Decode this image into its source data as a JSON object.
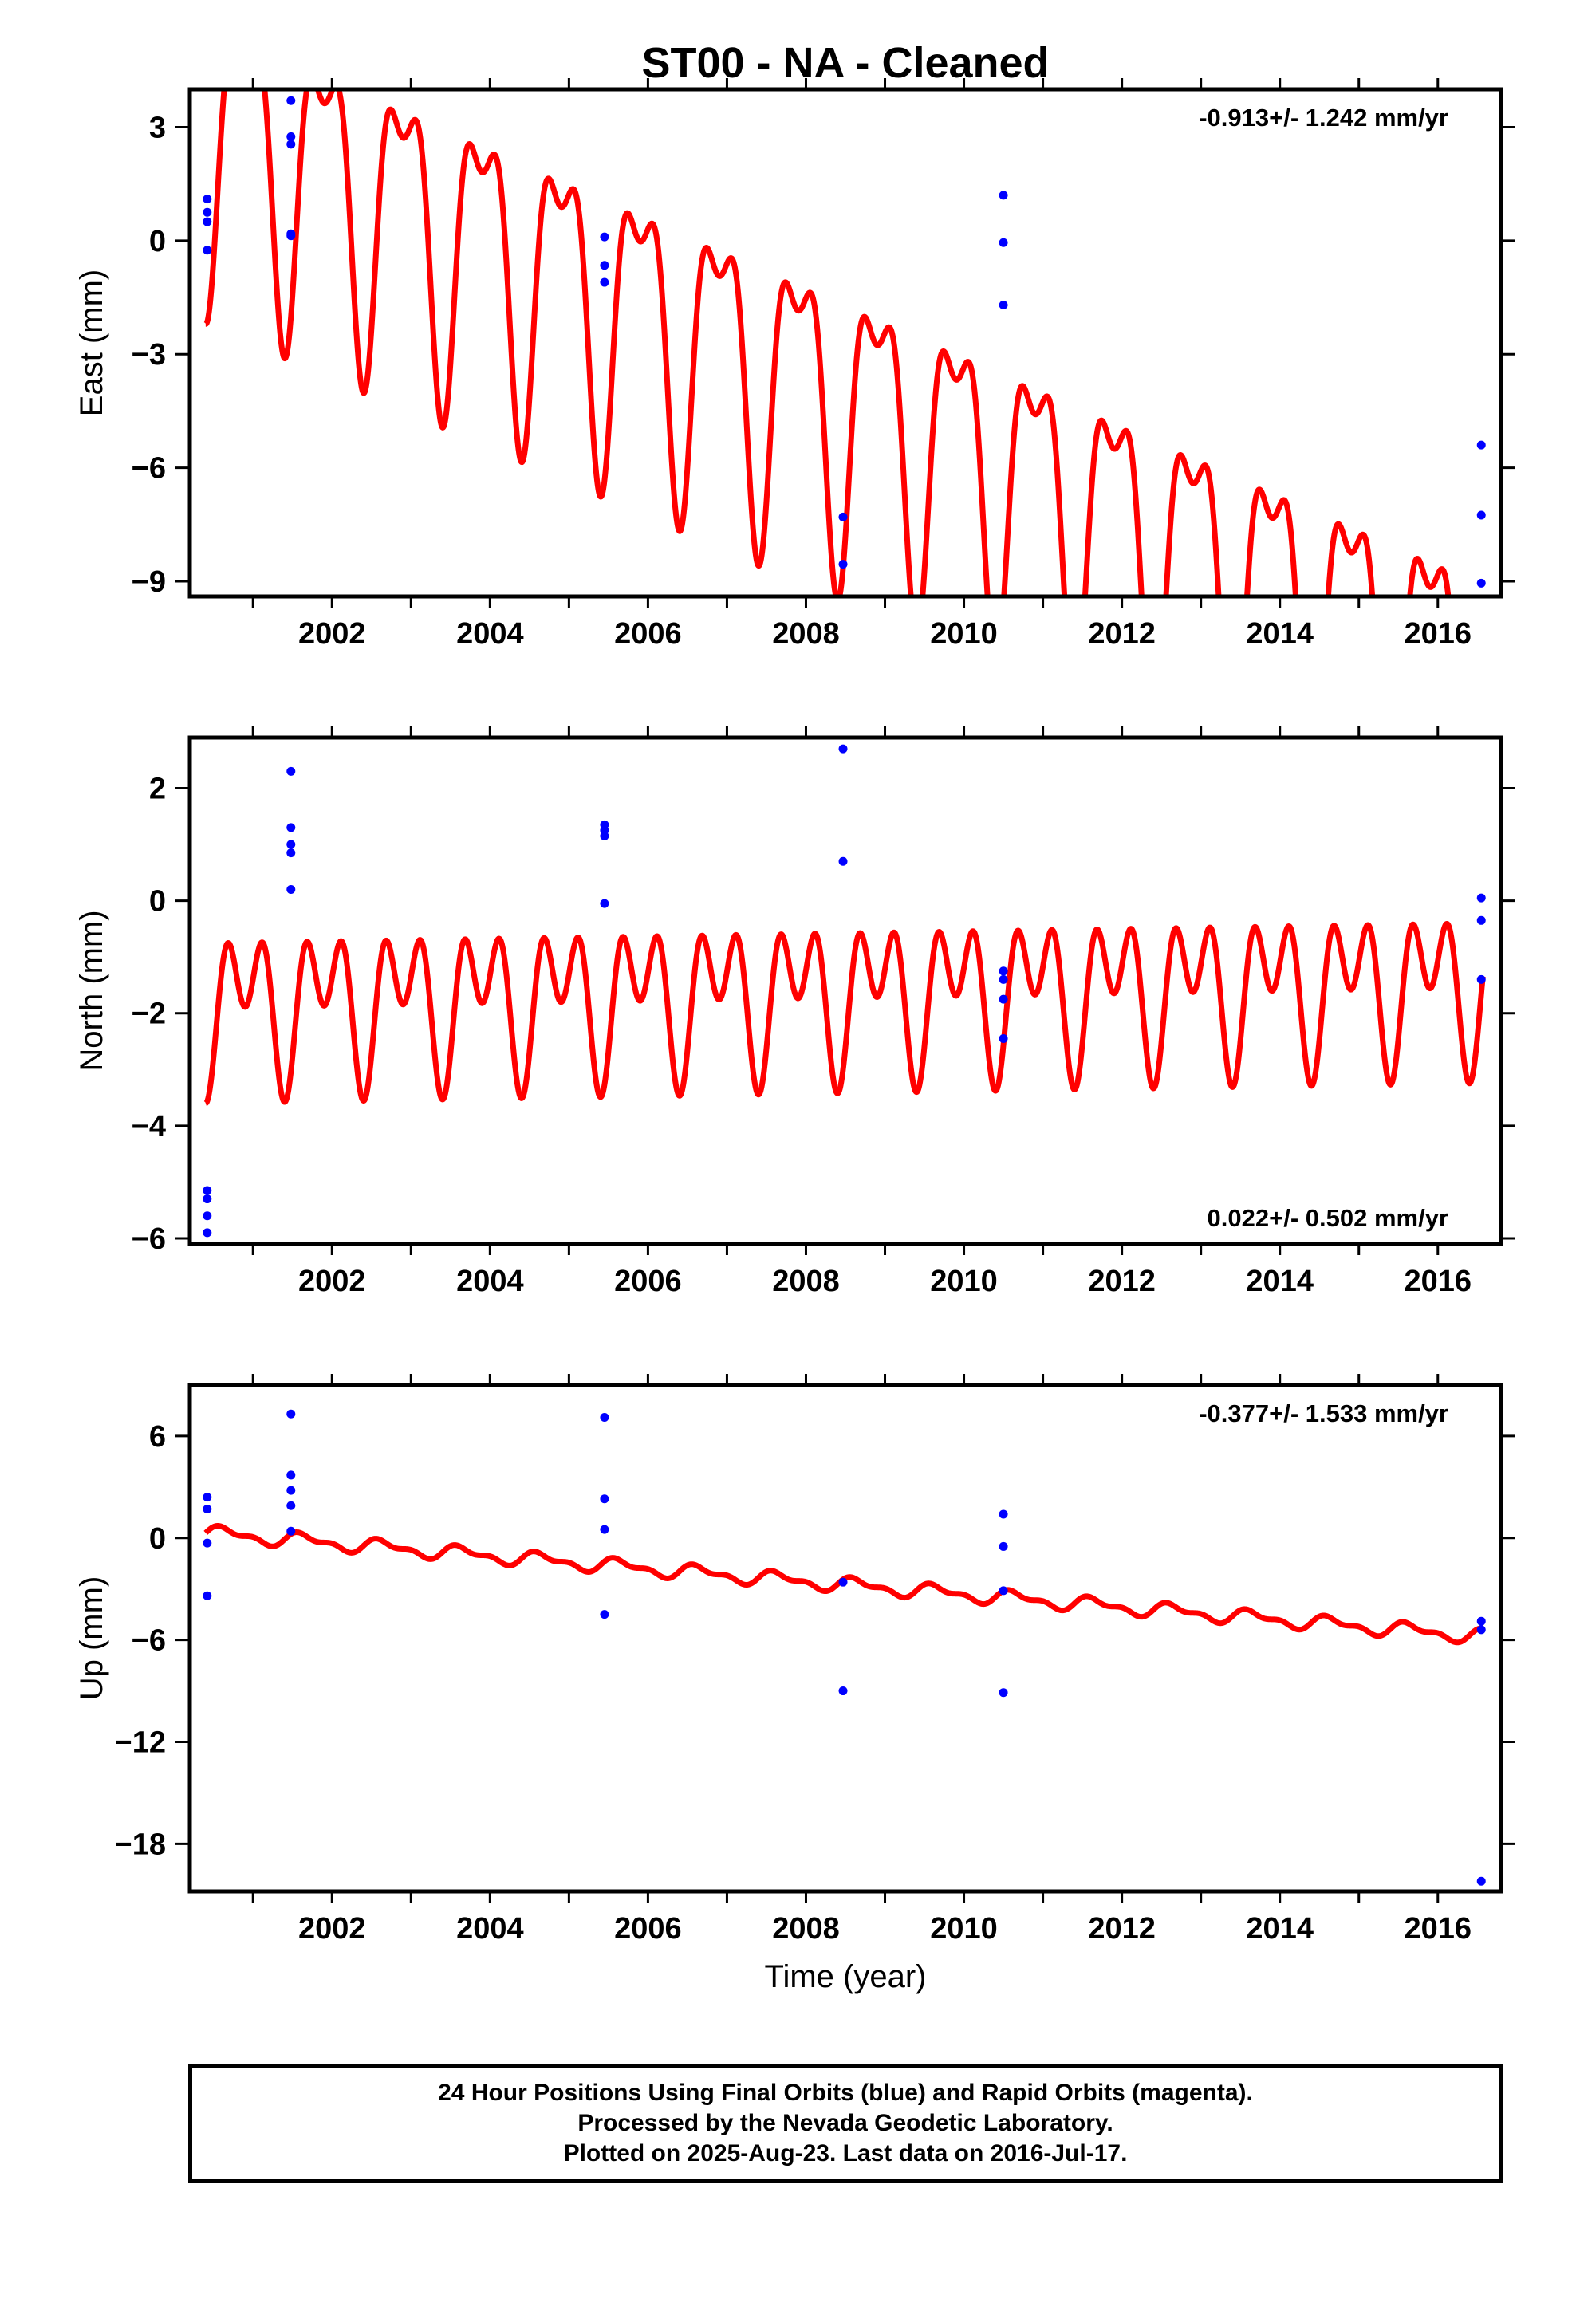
{
  "title": "ST00  - NA - Cleaned",
  "xlabel": "Time (year)",
  "colors": {
    "model": "#ff0000",
    "final_orbits": "#0000ff",
    "axes": "#000000"
  },
  "footer": {
    "line1": "24 Hour Positions Using Final Orbits (blue) and Rapid Orbits (magenta).",
    "line2": "Processed by the Nevada Geodetic Laboratory.",
    "line3": "Plotted on 2025-Aug-23. Last data on 2016-Jul-17."
  },
  "chart_data": [
    {
      "type": "scatter",
      "component": "east",
      "ylabel": "East (mm)",
      "rate_label": "-0.913+/- 1.242 mm/yr",
      "rate_position": "top-right",
      "xlim": [
        2000.2,
        2016.8
      ],
      "ylim": [
        -9.4,
        4.0
      ],
      "x_ticks": [
        2002,
        2004,
        2006,
        2008,
        2010,
        2012,
        2014,
        2016
      ],
      "x_tick_labels": [
        "2002",
        "2004",
        "2006",
        "2008",
        "2010",
        "2012",
        "2014",
        "2016"
      ],
      "y_ticks": [
        3,
        0,
        -3,
        -6,
        -9
      ],
      "y_tick_labels": [
        "3",
        "0",
        "−3",
        "−6",
        "−9"
      ],
      "grid": false,
      "series": [
        {
          "kind": "points",
          "x": [
            2000.42,
            2000.42,
            2000.42,
            2000.42,
            2001.48,
            2001.48,
            2001.48,
            2001.48,
            2001.48,
            2005.45,
            2005.45,
            2005.45,
            2008.47,
            2008.47,
            2010.5,
            2010.5,
            2010.5,
            2016.55,
            2016.55,
            2016.55
          ],
          "y": [
            1.1,
            0.75,
            0.5,
            -0.25,
            3.7,
            2.75,
            2.55,
            0.18,
            0.13,
            0.1,
            -0.65,
            -1.1,
            -7.3,
            -8.55,
            1.2,
            -0.05,
            -1.7,
            -5.4,
            -7.25,
            -9.05
          ]
        },
        {
          "kind": "model",
          "offset": 3.0,
          "rate": -0.913,
          "reference_year": 2000.4,
          "harmonics": [
            {
              "period_years": 1.0,
              "amplitude": 3.6,
              "phase": 4.71
            },
            {
              "period_years": 0.5,
              "amplitude": 1.6,
              "phase": 4.71
            }
          ]
        }
      ]
    },
    {
      "type": "scatter",
      "component": "north",
      "ylabel": "North (mm)",
      "rate_label": "0.022+/- 0.502 mm/yr",
      "rate_position": "bottom-right",
      "xlim": [
        2000.2,
        2016.8
      ],
      "ylim": [
        -6.1,
        2.9
      ],
      "x_ticks": [
        2002,
        2004,
        2006,
        2008,
        2010,
        2012,
        2014,
        2016
      ],
      "x_tick_labels": [
        "2002",
        "2004",
        "2006",
        "2008",
        "2010",
        "2012",
        "2014",
        "2016"
      ],
      "y_ticks": [
        2,
        0,
        -2,
        -4,
        -6
      ],
      "y_tick_labels": [
        "2",
        "0",
        "−2",
        "−4",
        "−6"
      ],
      "grid": false,
      "series": [
        {
          "kind": "points",
          "x": [
            2000.42,
            2000.42,
            2000.42,
            2000.42,
            2001.48,
            2001.48,
            2001.48,
            2001.48,
            2001.48,
            2005.45,
            2005.45,
            2005.45,
            2005.45,
            2008.47,
            2008.47,
            2010.5,
            2010.5,
            2010.5,
            2010.5,
            2016.55,
            2016.55,
            2016.55
          ],
          "y": [
            -5.15,
            -5.3,
            -5.6,
            -5.9,
            2.3,
            1.3,
            1.0,
            0.85,
            0.2,
            1.35,
            1.25,
            1.15,
            -0.05,
            2.7,
            0.7,
            -1.25,
            -1.4,
            -1.75,
            -2.45,
            0.05,
            -0.35,
            -1.4
          ]
        },
        {
          "kind": "model",
          "offset": -1.8,
          "rate": 0.022,
          "reference_year": 2000.4,
          "harmonics": [
            {
              "period_years": 1.0,
              "amplitude": 0.85,
              "phase": 4.71
            },
            {
              "period_years": 0.5,
              "amplitude": 0.95,
              "phase": 4.71
            }
          ]
        }
      ]
    },
    {
      "type": "scatter",
      "component": "up",
      "ylabel": "Up (mm)",
      "rate_label": "-0.377+/- 1.533 mm/yr",
      "rate_position": "top-right",
      "xlim": [
        2000.2,
        2016.8
      ],
      "ylim": [
        -20.8,
        9.0
      ],
      "x_ticks": [
        2002,
        2004,
        2006,
        2008,
        2010,
        2012,
        2014,
        2016
      ],
      "x_tick_labels": [
        "2002",
        "2004",
        "2006",
        "2008",
        "2010",
        "2012",
        "2014",
        "2016"
      ],
      "y_ticks": [
        6,
        0,
        -6,
        -12,
        -18
      ],
      "y_tick_labels": [
        "6",
        "0",
        "−6",
        "−12",
        "−18"
      ],
      "grid": false,
      "series": [
        {
          "kind": "points",
          "x": [
            2000.42,
            2000.42,
            2000.42,
            2000.42,
            2001.48,
            2001.48,
            2001.48,
            2001.48,
            2001.48,
            2005.45,
            2005.45,
            2005.45,
            2005.45,
            2008.47,
            2008.47,
            2010.5,
            2010.5,
            2010.5,
            2010.5,
            2016.55,
            2016.55,
            2016.55
          ],
          "y": [
            2.4,
            1.7,
            -0.3,
            -3.4,
            7.3,
            3.7,
            2.8,
            1.9,
            0.4,
            7.1,
            2.3,
            0.5,
            -4.5,
            -2.6,
            -9.0,
            1.4,
            -0.5,
            -3.1,
            -9.1,
            -4.9,
            -5.4,
            -20.2
          ]
        },
        {
          "kind": "model",
          "offset": 0.3,
          "rate": -0.377,
          "reference_year": 2000.4,
          "harmonics": [
            {
              "period_years": 1.0,
              "amplitude": 0.35,
              "phase": 0.0
            },
            {
              "period_years": 0.5,
              "amplitude": 0.2,
              "phase": 0.0
            }
          ]
        }
      ]
    }
  ]
}
